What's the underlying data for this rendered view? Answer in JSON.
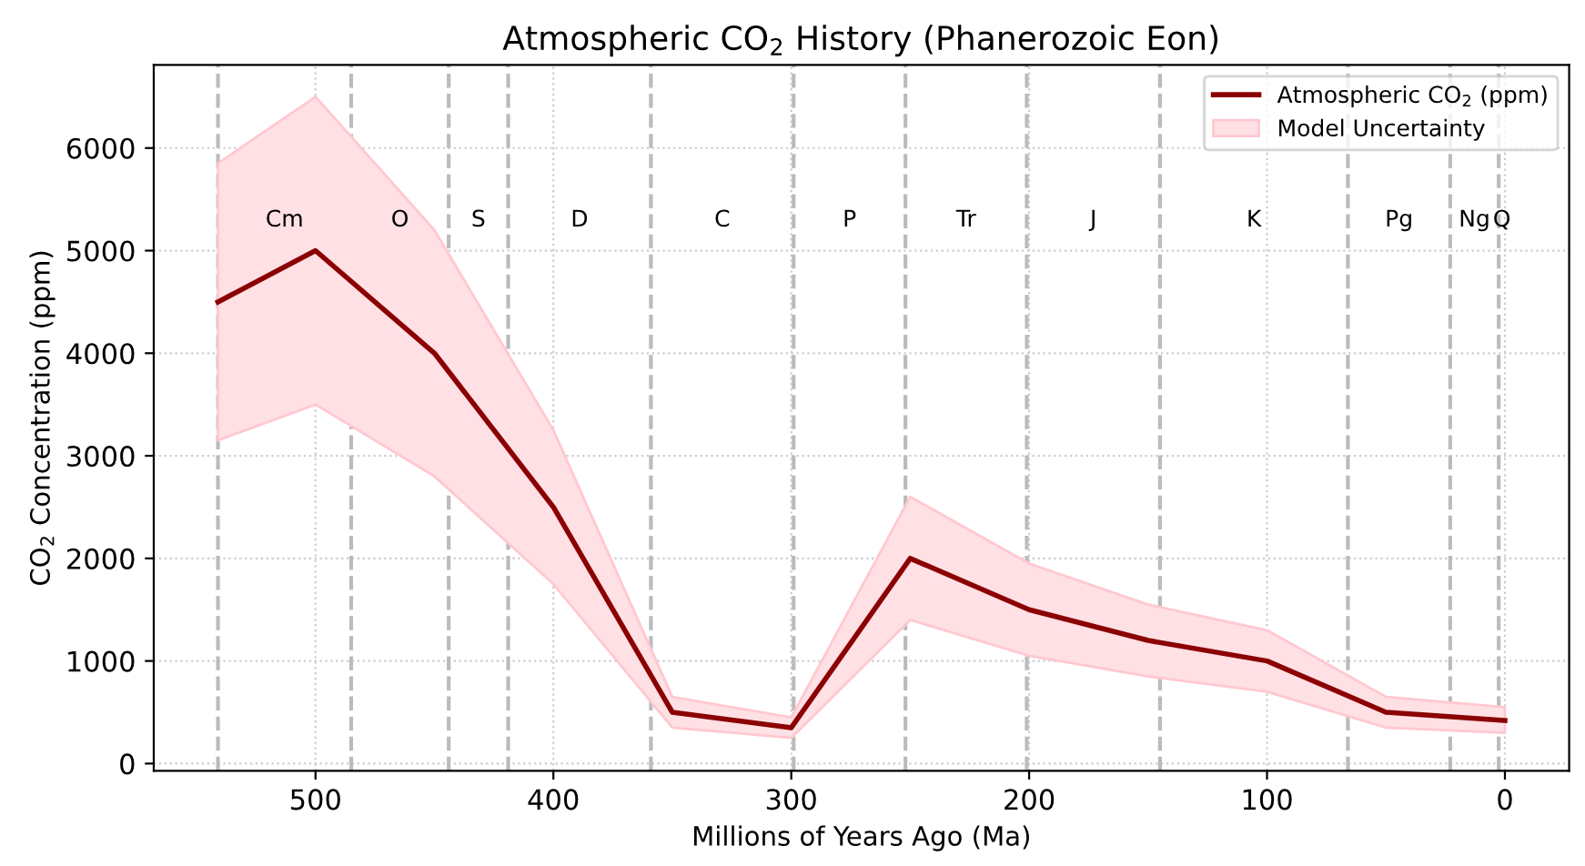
{
  "chart_data": {
    "type": "line",
    "title": "Atmospheric CO$_{2}$ History (Phanerozoic Eon)",
    "xlabel": "Millions of Years Ago (Ma)",
    "ylabel": "CO$_{2}$ Concentration (ppm)",
    "x": [
      541,
      500,
      450,
      400,
      350,
      300,
      250,
      200,
      150,
      100,
      50,
      0
    ],
    "series": [
      {
        "name": "Atmospheric CO$_{2}$ (ppm)",
        "color": "#8b0000",
        "values": [
          4500,
          5000,
          4000,
          2500,
          500,
          350,
          2000,
          1500,
          1200,
          1000,
          500,
          420
        ],
        "lower": [
          3150,
          3500,
          2800,
          1750,
          350,
          250,
          1400,
          1050,
          850,
          700,
          350,
          300
        ],
        "upper": [
          5850,
          6500,
          5200,
          3250,
          650,
          450,
          2600,
          1950,
          1550,
          1300,
          650,
          550
        ]
      },
      {
        "name": "Model Uncertainty",
        "type": "area",
        "color": "#ffe0e5",
        "values": [
          null,
          null,
          null,
          null,
          null,
          null,
          null,
          null,
          null,
          null,
          null,
          null
        ]
      }
    ],
    "xlim": [
      568,
      -27
    ],
    "xticks": [
      500,
      400,
      300,
      200,
      100,
      0
    ],
    "ylim": [
      -70,
      6810
    ],
    "yticks": [
      0,
      1000,
      2000,
      3000,
      4000,
      5000,
      6000
    ],
    "ref_lines": [
      {
        "axis": "x",
        "value": 541,
        "color": "#bbbbbb",
        "line_style": "dashed"
      },
      {
        "axis": "x",
        "value": 485,
        "color": "#bbbbbb",
        "line_style": "dashed"
      },
      {
        "axis": "x",
        "value": 444,
        "color": "#bbbbbb",
        "line_style": "dashed"
      },
      {
        "axis": "x",
        "value": 419,
        "color": "#bbbbbb",
        "line_style": "dashed"
      },
      {
        "axis": "x",
        "value": 359,
        "color": "#bbbbbb",
        "line_style": "dashed"
      },
      {
        "axis": "x",
        "value": 299,
        "color": "#bbbbbb",
        "line_style": "dashed"
      },
      {
        "axis": "x",
        "value": 252,
        "color": "#bbbbbb",
        "line_style": "dashed"
      },
      {
        "axis": "x",
        "value": 201,
        "color": "#bbbbbb",
        "line_style": "dashed"
      },
      {
        "axis": "x",
        "value": 145,
        "color": "#bbbbbb",
        "line_style": "dashed"
      },
      {
        "axis": "x",
        "value": 66,
        "color": "#bbbbbb",
        "line_style": "dashed"
      },
      {
        "axis": "x",
        "value": 23,
        "color": "#bbbbbb",
        "line_style": "dashed"
      },
      {
        "axis": "x",
        "value": 2.6,
        "color": "#bbbbbb",
        "line_style": "dashed"
      }
    ],
    "annotations": [
      "Cm",
      "O",
      "S",
      "D",
      "C",
      "P",
      "Tr",
      "J",
      "K",
      "Pg",
      "Ng",
      "Q"
    ],
    "grid": true,
    "legend": "top right",
    "marker": "none",
    "line_style": "solid"
  }
}
